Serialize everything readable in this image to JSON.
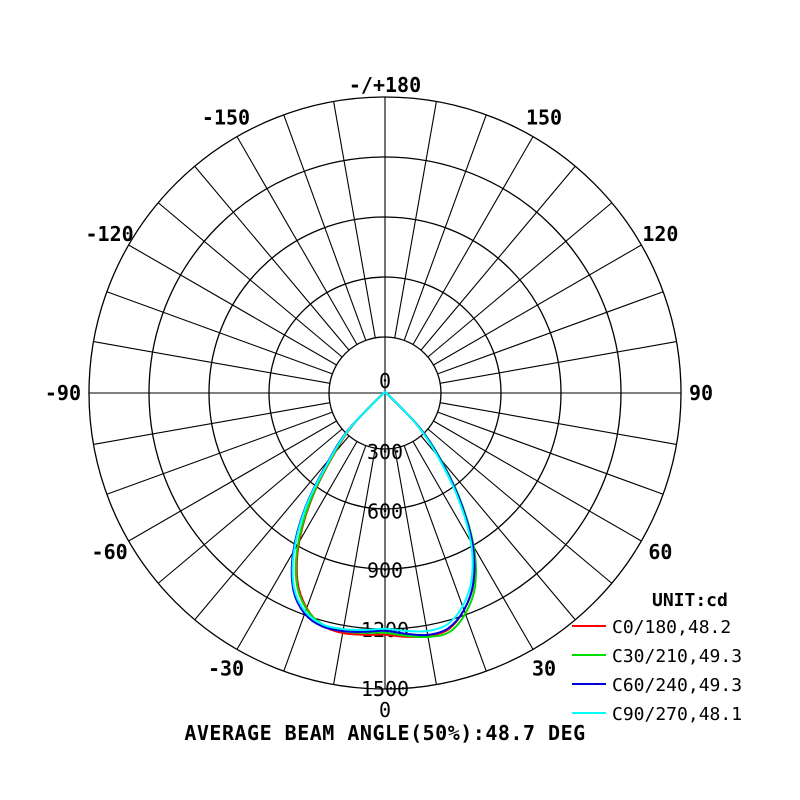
{
  "chart_data": {
    "type": "polar-line",
    "unit_label": "UNIT:cd",
    "footer": "AVERAGE BEAM ANGLE(50%):48.7 DEG",
    "radial_max": 1500,
    "radial_ticks": [
      {
        "value": 0,
        "label": "0"
      },
      {
        "value": 300,
        "label": "300"
      },
      {
        "value": 600,
        "label": "600"
      },
      {
        "value": 900,
        "label": "900"
      },
      {
        "value": 1200,
        "label": "1200"
      },
      {
        "value": 1500,
        "label": "1500"
      }
    ],
    "bottom_zero_label": "0",
    "angle_labels": [
      {
        "angle": 180,
        "label": "-/+180"
      },
      {
        "angle": 150,
        "label": "150"
      },
      {
        "angle": -150,
        "label": "-150"
      },
      {
        "angle": 120,
        "label": "120"
      },
      {
        "angle": -120,
        "label": "-120"
      },
      {
        "angle": 90,
        "label": "90"
      },
      {
        "angle": -90,
        "label": "-90"
      },
      {
        "angle": 60,
        "label": "60"
      },
      {
        "angle": -60,
        "label": "-60"
      },
      {
        "angle": 30,
        "label": "30"
      },
      {
        "angle": -30,
        "label": "-30"
      }
    ],
    "series": [
      {
        "name": "C0/180,48.2",
        "color": "#ff0000",
        "points": [
          [
            -90,
            0
          ],
          [
            -60,
            20
          ],
          [
            -45,
            230
          ],
          [
            -40,
            400
          ],
          [
            -35,
            640
          ],
          [
            -30,
            870
          ],
          [
            -25,
            1050
          ],
          [
            -20,
            1160
          ],
          [
            -15,
            1220
          ],
          [
            -10,
            1235
          ],
          [
            -5,
            1230
          ],
          [
            0,
            1225
          ],
          [
            5,
            1240
          ],
          [
            10,
            1250
          ],
          [
            15,
            1240
          ],
          [
            20,
            1170
          ],
          [
            25,
            1060
          ],
          [
            30,
            880
          ],
          [
            35,
            650
          ],
          [
            40,
            420
          ],
          [
            45,
            230
          ],
          [
            60,
            20
          ],
          [
            90,
            0
          ]
        ]
      },
      {
        "name": "C30/210,49.3",
        "color": "#00dd00",
        "points": [
          [
            -90,
            0
          ],
          [
            -60,
            20
          ],
          [
            -45,
            240
          ],
          [
            -40,
            410
          ],
          [
            -35,
            650
          ],
          [
            -30,
            880
          ],
          [
            -25,
            1060
          ],
          [
            -20,
            1165
          ],
          [
            -15,
            1215
          ],
          [
            -10,
            1225
          ],
          [
            -5,
            1220
          ],
          [
            0,
            1215
          ],
          [
            5,
            1235
          ],
          [
            10,
            1255
          ],
          [
            15,
            1255
          ],
          [
            20,
            1190
          ],
          [
            25,
            1080
          ],
          [
            30,
            900
          ],
          [
            35,
            670
          ],
          [
            40,
            440
          ],
          [
            45,
            250
          ],
          [
            60,
            20
          ],
          [
            90,
            0
          ]
        ]
      },
      {
        "name": "C60/240,49.3",
        "color": "#0000dd",
        "points": [
          [
            -90,
            0
          ],
          [
            -60,
            20
          ],
          [
            -45,
            260
          ],
          [
            -40,
            440
          ],
          [
            -35,
            700
          ],
          [
            -30,
            930
          ],
          [
            -25,
            1100
          ],
          [
            -20,
            1190
          ],
          [
            -15,
            1225
          ],
          [
            -10,
            1225
          ],
          [
            -5,
            1215
          ],
          [
            0,
            1205
          ],
          [
            5,
            1225
          ],
          [
            10,
            1245
          ],
          [
            15,
            1235
          ],
          [
            20,
            1170
          ],
          [
            25,
            1060
          ],
          [
            30,
            890
          ],
          [
            35,
            660
          ],
          [
            40,
            430
          ],
          [
            45,
            245
          ],
          [
            60,
            20
          ],
          [
            90,
            0
          ]
        ]
      },
      {
        "name": "C90/270,48.1",
        "color": "#00ffff",
        "points": [
          [
            -90,
            0
          ],
          [
            -60,
            20
          ],
          [
            -45,
            250
          ],
          [
            -40,
            430
          ],
          [
            -35,
            690
          ],
          [
            -30,
            920
          ],
          [
            -25,
            1090
          ],
          [
            -20,
            1180
          ],
          [
            -15,
            1215
          ],
          [
            -10,
            1215
          ],
          [
            -5,
            1205
          ],
          [
            0,
            1195
          ],
          [
            5,
            1210
          ],
          [
            10,
            1225
          ],
          [
            15,
            1215
          ],
          [
            20,
            1150
          ],
          [
            25,
            1040
          ],
          [
            30,
            870
          ],
          [
            35,
            640
          ],
          [
            40,
            410
          ],
          [
            45,
            230
          ],
          [
            60,
            20
          ],
          [
            90,
            0
          ]
        ]
      }
    ]
  }
}
